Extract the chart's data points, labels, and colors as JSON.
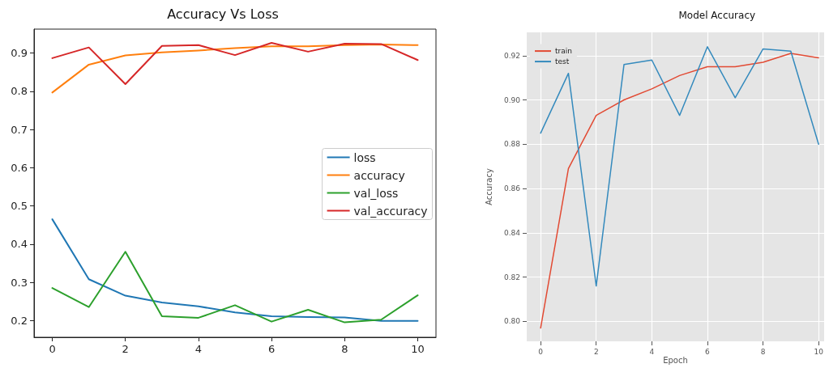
{
  "chart_data": [
    {
      "type": "line",
      "title": "Accuracy Vs Loss",
      "x": [
        0,
        1,
        2,
        3,
        4,
        5,
        6,
        7,
        8,
        9,
        10
      ],
      "series": [
        {
          "name": "loss",
          "color": "#1f77b4",
          "values": [
            0.465,
            0.308,
            0.265,
            0.247,
            0.237,
            0.221,
            0.211,
            0.209,
            0.208,
            0.199,
            0.199
          ]
        },
        {
          "name": "accuracy",
          "color": "#ff7f0e",
          "values": [
            0.797,
            0.87,
            0.894,
            0.902,
            0.907,
            0.913,
            0.918,
            0.918,
            0.921,
            0.923,
            0.921
          ]
        },
        {
          "name": "val_loss",
          "color": "#2ca02c",
          "values": [
            0.285,
            0.235,
            0.38,
            0.211,
            0.207,
            0.24,
            0.197,
            0.228,
            0.195,
            0.202,
            0.266
          ]
        },
        {
          "name": "val_accuracy",
          "color": "#d62728",
          "values": [
            0.887,
            0.915,
            0.819,
            0.919,
            0.921,
            0.895,
            0.927,
            0.904,
            0.925,
            0.924,
            0.882
          ]
        }
      ],
      "xlim": [
        -0.5,
        10.5
      ],
      "xticks": [
        0,
        2,
        4,
        6,
        8,
        10
      ],
      "ylim": [
        0.156,
        0.963
      ],
      "yticks": [
        0.2,
        0.3,
        0.4,
        0.5,
        0.6,
        0.7,
        0.8,
        0.9
      ],
      "grid": false,
      "legend": "right",
      "marker": "none",
      "line_style": "solid"
    },
    {
      "type": "line",
      "title": "Model Accuracy",
      "xlabel": "Epoch",
      "ylabel": "Accuracy",
      "x": [
        0,
        1,
        2,
        3,
        4,
        5,
        6,
        7,
        8,
        9,
        10
      ],
      "series": [
        {
          "name": "train",
          "color": "#e24a33",
          "values": [
            0.797,
            0.869,
            0.893,
            0.9,
            0.905,
            0.911,
            0.915,
            0.915,
            0.917,
            0.921,
            0.919
          ]
        },
        {
          "name": "test",
          "color": "#348abd",
          "values": [
            0.885,
            0.912,
            0.816,
            0.916,
            0.918,
            0.893,
            0.924,
            0.901,
            0.923,
            0.922,
            0.88
          ]
        }
      ],
      "xlim": [
        -0.5,
        10.2
      ],
      "xticks": [
        0,
        2,
        4,
        6,
        8,
        10
      ],
      "ylim": [
        0.791,
        0.9305
      ],
      "yticks": [
        {
          "value": 0.8,
          "label": "0.80"
        },
        {
          "value": 0.82,
          "label": "0.82"
        },
        {
          "value": 0.84,
          "label": "0.84"
        },
        {
          "value": 0.86,
          "label": "0.86"
        },
        {
          "value": 0.88,
          "label": "0.88"
        },
        {
          "value": 0.9,
          "label": "0.90"
        },
        0.92
      ],
      "grid": true,
      "legend": "top left",
      "marker": "none",
      "line_style": "solid"
    }
  ]
}
